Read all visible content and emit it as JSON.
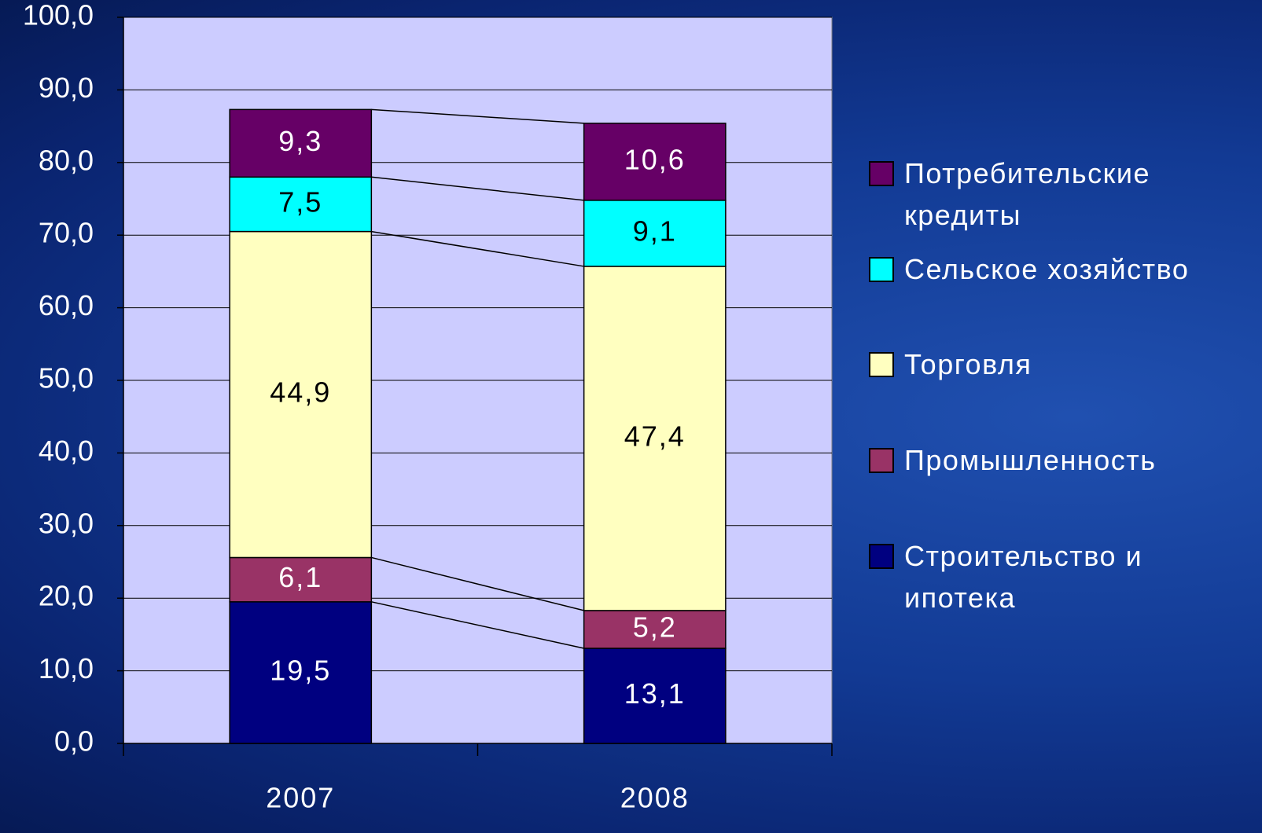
{
  "chart_data": {
    "type": "stacked_bar",
    "categories": [
      "2007",
      "2008"
    ],
    "series": [
      {
        "name": "Строительство и ипотека",
        "color": "#000080",
        "label_color": "#ffffff",
        "values": [
          19.5,
          13.1
        ],
        "value_labels": [
          "19,5",
          "13,1"
        ]
      },
      {
        "name": "Промышленность",
        "color": "#993366",
        "label_color": "#ffffff",
        "values": [
          6.1,
          5.2
        ],
        "value_labels": [
          "6,1",
          "5,2"
        ]
      },
      {
        "name": "Торговля",
        "color": "#ffffc0",
        "label_color": "#000000",
        "values": [
          44.9,
          47.4
        ],
        "value_labels": [
          "44,9",
          "47,4"
        ]
      },
      {
        "name": "Сельское хозяйство",
        "color": "#00ffff",
        "label_color": "#000000",
        "values": [
          7.5,
          9.1
        ],
        "value_labels": [
          "7,5",
          "9,1"
        ]
      },
      {
        "name": "Потребительские кредиты",
        "color": "#660066",
        "label_color": "#ffffff",
        "values": [
          9.3,
          10.6
        ],
        "value_labels": [
          "9,3",
          "10,6"
        ]
      }
    ],
    "ylim": [
      0,
      100
    ],
    "yticks": [
      {
        "value": 0,
        "label": "0,0"
      },
      {
        "value": 10,
        "label": "10,0"
      },
      {
        "value": 20,
        "label": "20,0"
      },
      {
        "value": 30,
        "label": "30,0"
      },
      {
        "value": 40,
        "label": "40,0"
      },
      {
        "value": 50,
        "label": "50,0"
      },
      {
        "value": 60,
        "label": "60,0"
      },
      {
        "value": 70,
        "label": "70,0"
      },
      {
        "value": 80,
        "label": "80,0"
      },
      {
        "value": 90,
        "label": "90,0"
      },
      {
        "value": 100,
        "label": "100,0"
      }
    ],
    "grid": true,
    "legend": "right"
  }
}
